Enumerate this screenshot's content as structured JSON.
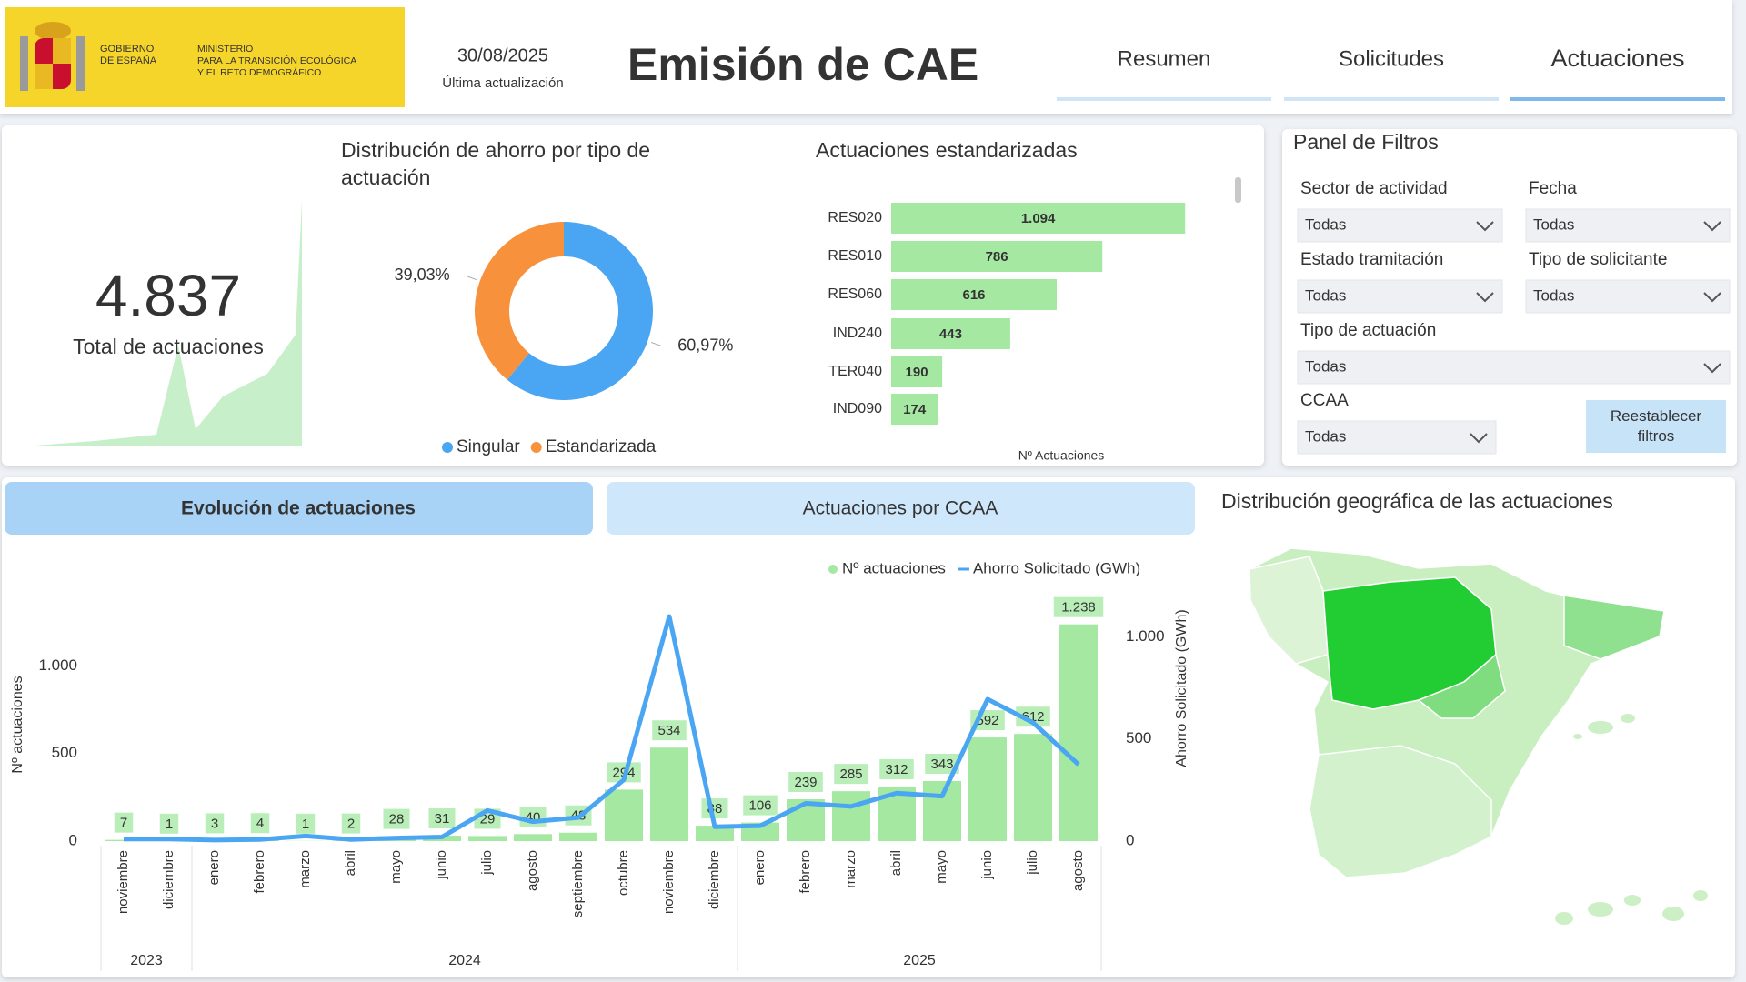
{
  "header": {
    "logo": {
      "government": [
        "GOBIERNO",
        "DE ESPAÑA"
      ],
      "ministry": [
        "MINISTERIO",
        "PARA LA TRANSICIÓN ECOLÓGICA",
        "Y EL RETO DEMOGRÁFICO"
      ]
    },
    "date": "30/08/2025",
    "date_caption": "Última actualización",
    "title": "Emisión de CAE",
    "tabs": [
      "Resumen",
      "Solicitudes",
      "Actuaciones"
    ],
    "active_tab": 2
  },
  "kpi": {
    "value": "4.837",
    "label": "Total de actuaciones"
  },
  "filters": {
    "title": "Panel de Filtros",
    "fields": [
      {
        "label": "Sector de actividad",
        "value": "Todas"
      },
      {
        "label": "Fecha",
        "value": "Todas"
      },
      {
        "label": "Estado tramitación",
        "value": "Todas"
      },
      {
        "label": "Tipo de solicitante",
        "value": "Todas"
      },
      {
        "label": "Tipo de actuación",
        "value": "Todas"
      },
      {
        "label": "CCAA",
        "value": "Todas"
      }
    ],
    "reset_button": "Reestablecer filtros"
  },
  "section_tabs": [
    "Evolución de actuaciones",
    "Actuaciones por CCAA"
  ],
  "active_section_tab": 0,
  "map": {
    "title": "Distribución geográfica de las actuaciones"
  },
  "chart_data": [
    {
      "type": "donut",
      "title": "Distribución de ahorro por tipo de actuación",
      "categories": [
        "Singular",
        "Estandarizada"
      ],
      "values": [
        60.97,
        39.03
      ],
      "value_labels": [
        "60,97%",
        "39,03%"
      ],
      "colors": [
        "#4aa6f2",
        "#f7913c"
      ]
    },
    {
      "type": "hbar",
      "title": "Actuaciones estandarizadas",
      "categories": [
        "RES020",
        "RES010",
        "RES060",
        "IND240",
        "TER040",
        "IND090"
      ],
      "values": [
        1094,
        786,
        616,
        443,
        190,
        174
      ],
      "value_labels": [
        "1.094",
        "786",
        "616",
        "443",
        "190",
        "174"
      ],
      "xlim": [
        0,
        1100
      ],
      "xlabel": "Nº Actuaciones",
      "color": "#a4e8a2"
    },
    {
      "type": "combo",
      "categories": [
        "noviembre",
        "diciembre",
        "enero",
        "febrero",
        "marzo",
        "abril",
        "mayo",
        "junio",
        "julio",
        "agosto",
        "septiembre",
        "octubre",
        "noviembre",
        "diciembre",
        "enero",
        "febrero",
        "marzo",
        "abril",
        "mayo",
        "junio",
        "julio",
        "agosto"
      ],
      "years": [
        "2023",
        "2023",
        "2024",
        "2024",
        "2024",
        "2024",
        "2024",
        "2024",
        "2024",
        "2024",
        "2024",
        "2024",
        "2024",
        "2024",
        "2025",
        "2025",
        "2025",
        "2025",
        "2025",
        "2025",
        "2025",
        "2025"
      ],
      "ylabel": "Nº actuaciones",
      "y2label": "Ahorro Solicitado (GWh)",
      "ylim": [
        0,
        1330
      ],
      "yticks": [
        0,
        500,
        {
          "value": 1000,
          "label": "1.000"
        }
      ],
      "y2lim": [
        0,
        1140
      ],
      "y2ticks": [
        0,
        500,
        {
          "value": 1000,
          "label": "1.000"
        }
      ],
      "series": [
        {
          "name": "Nº actuaciones",
          "type": "bar",
          "color": "#a4e8a2",
          "values": [
            7,
            1,
            3,
            4,
            1,
            2,
            28,
            31,
            29,
            40,
            48,
            294,
            534,
            88,
            106,
            239,
            285,
            312,
            343,
            592,
            612,
            1238
          ],
          "value_labels": [
            "7",
            "1",
            "3",
            "4",
            "1",
            "2",
            "28",
            "31",
            "29",
            "40",
            "48",
            "294",
            "534",
            "88",
            "106",
            "239",
            "285",
            "312",
            "343",
            "592",
            "612",
            "1.238"
          ]
        },
        {
          "name": "Ahorro Solicitado (GWh)",
          "type": "line",
          "axis": "y2",
          "color": "#4aa6f2",
          "values": [
            10,
            10,
            5,
            8,
            25,
            8,
            15,
            20,
            150,
            95,
            115,
            300,
            1100,
            70,
            75,
            185,
            170,
            235,
            220,
            695,
            580,
            375
          ]
        }
      ]
    }
  ]
}
